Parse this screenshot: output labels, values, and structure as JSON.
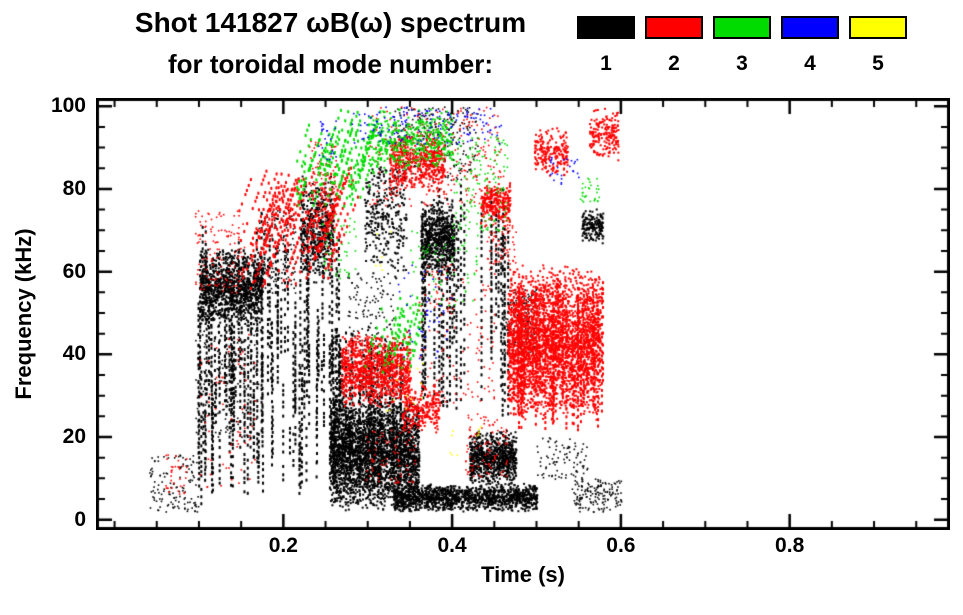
{
  "header": {
    "title_line1": "Shot 141827 ωB(ω) spectrum",
    "title_line2": "for toroidal mode number:"
  },
  "legend": {
    "items": [
      {
        "label": "1",
        "color": "#000000"
      },
      {
        "label": "2",
        "color": "#ff0000"
      },
      {
        "label": "3",
        "color": "#00dc00"
      },
      {
        "label": "4",
        "color": "#0000ff"
      },
      {
        "label": "5",
        "color": "#ffff00"
      }
    ]
  },
  "chart_data": {
    "type": "scatter",
    "title": "Shot 141827 ωB(ω) spectrum for toroidal mode number 1-5",
    "xlabel": "Time (s)",
    "ylabel": "Frequency (kHz)",
    "xlim": [
      0.0,
      1.0
    ],
    "ylim": [
      0,
      100
    ],
    "grid": false,
    "legend_position": "top-right",
    "x_ticks": {
      "major": [
        0.2,
        0.4,
        0.6,
        0.8
      ],
      "labels": [
        "0.2",
        "0.4",
        "0.6",
        "0.8"
      ],
      "minor_step": 0.05
    },
    "y_ticks": {
      "major": [
        0,
        20,
        40,
        60,
        80,
        100
      ],
      "labels": [
        "0",
        "20",
        "40",
        "60",
        "80",
        "100"
      ],
      "minor_step": 5
    },
    "series": [
      {
        "name": "n=1",
        "mode": 1,
        "color": "#000000",
        "clusters": [
          {
            "kind": "vstreaks",
            "t": [
              0.095,
              0.175
            ],
            "f": [
              4,
              72
            ],
            "n": 55,
            "seg": [
              6,
              40
            ]
          },
          {
            "kind": "blob",
            "t": [
              0.1,
              0.175
            ],
            "f": [
              46,
              66
            ],
            "n": 1100
          },
          {
            "kind": "vstreaks",
            "t": [
              0.17,
              0.27
            ],
            "f": [
              4,
              78
            ],
            "n": 60,
            "seg": [
              6,
              35
            ]
          },
          {
            "kind": "blob",
            "t": [
              0.22,
              0.258
            ],
            "f": [
              56,
              84
            ],
            "n": 500
          },
          {
            "kind": "blob",
            "t": [
              0.255,
              0.36
            ],
            "f": [
              2,
              30
            ],
            "n": 2600
          },
          {
            "kind": "vstreaks",
            "t": [
              0.255,
              0.345
            ],
            "f": [
              4,
              48
            ],
            "n": 45,
            "seg": [
              8,
              30
            ]
          },
          {
            "kind": "blob",
            "t": [
              0.33,
              0.5
            ],
            "f": [
              2,
              9
            ],
            "n": 1300
          },
          {
            "kind": "blob",
            "t": [
              0.42,
              0.475
            ],
            "f": [
              8,
              22
            ],
            "n": 800
          },
          {
            "kind": "vstreaks",
            "t": [
              0.355,
              0.47
            ],
            "f": [
              25,
              82
            ],
            "n": 28,
            "seg": [
              15,
              55
            ]
          },
          {
            "kind": "blob",
            "t": [
              0.362,
              0.402
            ],
            "f": [
              58,
              78
            ],
            "n": 600
          },
          {
            "kind": "blob",
            "t": [
              0.295,
              0.345
            ],
            "f": [
              58,
              88
            ],
            "n": 300
          },
          {
            "kind": "specks",
            "t": [
              0.33,
              0.43
            ],
            "f": [
              82,
              100
            ],
            "n": 280
          },
          {
            "kind": "specks",
            "t": [
              0.04,
              0.1
            ],
            "f": [
              2,
              16
            ],
            "n": 130
          },
          {
            "kind": "specks",
            "t": [
              0.54,
              0.6
            ],
            "f": [
              2,
              10
            ],
            "n": 160
          },
          {
            "kind": "blob",
            "t": [
              0.553,
              0.578
            ],
            "f": [
              67,
              76
            ],
            "n": 160
          },
          {
            "kind": "specks",
            "t": [
              0.46,
              0.5
            ],
            "f": [
              40,
              56
            ],
            "n": 200
          },
          {
            "kind": "specks",
            "t": [
              0.5,
              0.56
            ],
            "f": [
              10,
              20
            ],
            "n": 90
          },
          {
            "kind": "specks",
            "t": [
              0.17,
              0.215
            ],
            "f": [
              55,
              75
            ],
            "n": 150
          },
          {
            "kind": "specks",
            "t": [
              0.095,
              0.17
            ],
            "f": [
              20,
              46
            ],
            "n": 150
          },
          {
            "kind": "specks",
            "t": [
              0.275,
              0.33
            ],
            "f": [
              30,
              60
            ],
            "n": 180
          }
        ]
      },
      {
        "name": "n=2",
        "mode": 2,
        "color": "#ff0000",
        "clusters": [
          {
            "kind": "dstreaks",
            "t": [
              0.145,
              0.255
            ],
            "f": [
              56,
              86
            ],
            "n": 60,
            "seg": [
              6,
              20
            ],
            "slope": 0.0018
          },
          {
            "kind": "blob",
            "t": [
              0.268,
              0.35
            ],
            "f": [
              27,
              46
            ],
            "n": 1000
          },
          {
            "kind": "blob",
            "t": [
              0.34,
              0.385
            ],
            "f": [
              21,
              33
            ],
            "n": 250
          },
          {
            "kind": "blob",
            "t": [
              0.465,
              0.575
            ],
            "f": [
              24,
              62
            ],
            "n": 2800
          },
          {
            "kind": "vstreaks",
            "t": [
              0.468,
              0.578
            ],
            "f": [
              22,
              60
            ],
            "n": 45,
            "seg": [
              10,
              34
            ]
          },
          {
            "kind": "blob",
            "t": [
              0.325,
              0.39
            ],
            "f": [
              79,
              95
            ],
            "n": 500
          },
          {
            "kind": "specks",
            "t": [
              0.3,
              0.46
            ],
            "f": [
              76,
              100
            ],
            "n": 260
          },
          {
            "kind": "blob",
            "t": [
              0.497,
              0.536
            ],
            "f": [
              83,
              95
            ],
            "n": 200
          },
          {
            "kind": "blob",
            "t": [
              0.562,
              0.596
            ],
            "f": [
              87,
              100
            ],
            "n": 180
          },
          {
            "kind": "blob",
            "t": [
              0.433,
              0.468
            ],
            "f": [
              71,
              82
            ],
            "n": 260
          },
          {
            "kind": "specks",
            "t": [
              0.095,
              0.155
            ],
            "f": [
              55,
              75
            ],
            "n": 130
          },
          {
            "kind": "specks",
            "t": [
              0.1,
              0.17
            ],
            "f": [
              8,
              45
            ],
            "n": 70
          },
          {
            "kind": "specks",
            "t": [
              0.06,
              0.085
            ],
            "f": [
              6,
              16
            ],
            "n": 35
          },
          {
            "kind": "specks",
            "t": [
              0.23,
              0.262
            ],
            "f": [
              70,
              92
            ],
            "n": 100
          },
          {
            "kind": "specks",
            "t": [
              0.36,
              0.45
            ],
            "f": [
              28,
              62
            ],
            "n": 130
          },
          {
            "kind": "specks",
            "t": [
              0.415,
              0.465
            ],
            "f": [
              10,
              26
            ],
            "n": 90
          },
          {
            "kind": "specks",
            "t": [
              0.295,
              0.36
            ],
            "f": [
              9,
              22
            ],
            "n": 70
          },
          {
            "kind": "specks",
            "t": [
              0.44,
              0.475
            ],
            "f": [
              62,
              72
            ],
            "n": 60
          }
        ]
      },
      {
        "name": "n=3",
        "mode": 3,
        "color": "#00dc00",
        "clusters": [
          {
            "kind": "dstreaks",
            "t": [
              0.212,
              0.302
            ],
            "f": [
              76,
              100
            ],
            "n": 40,
            "seg": [
              6,
              18
            ],
            "slope": 0.0016
          },
          {
            "kind": "blob",
            "t": [
              0.3,
              0.4
            ],
            "f": [
              84,
              100
            ],
            "n": 420
          },
          {
            "kind": "dstreaks",
            "t": [
              0.292,
              0.35
            ],
            "f": [
              36,
              55
            ],
            "n": 16,
            "seg": [
              5,
              14
            ],
            "slope": 0.0012
          },
          {
            "kind": "specks",
            "t": [
              0.4,
              0.465
            ],
            "f": [
              70,
              93
            ],
            "n": 150
          },
          {
            "kind": "specks",
            "t": [
              0.35,
              0.43
            ],
            "f": [
              52,
              70
            ],
            "n": 70
          },
          {
            "kind": "specks",
            "t": [
              0.245,
              0.285
            ],
            "f": [
              58,
              74
            ],
            "n": 50
          },
          {
            "kind": "specks",
            "t": [
              0.55,
              0.575
            ],
            "f": [
              77,
              83
            ],
            "n": 30
          }
        ]
      },
      {
        "name": "n=4",
        "mode": 4,
        "color": "#0000ff",
        "clusters": [
          {
            "kind": "specks",
            "t": [
              0.28,
              0.46
            ],
            "f": [
              91,
              100
            ],
            "n": 150
          },
          {
            "kind": "specks",
            "t": [
              0.335,
              0.4
            ],
            "f": [
              38,
              62
            ],
            "n": 45
          },
          {
            "kind": "specks",
            "t": [
              0.515,
              0.55
            ],
            "f": [
              81,
              88
            ],
            "n": 25
          },
          {
            "kind": "specks",
            "t": [
              0.24,
              0.262
            ],
            "f": [
              87,
              97
            ],
            "n": 25
          }
        ]
      },
      {
        "name": "n=5",
        "mode": 5,
        "color": "#ffff00",
        "clusters": [
          {
            "kind": "specks",
            "t": [
              0.318,
              0.365
            ],
            "f": [
              26,
              38
            ],
            "n": 14
          },
          {
            "kind": "specks",
            "t": [
              0.395,
              0.435
            ],
            "f": [
              14,
              23
            ],
            "n": 10
          },
          {
            "kind": "specks",
            "t": [
              0.3,
              0.34
            ],
            "f": [
              60,
              70
            ],
            "n": 6
          }
        ]
      }
    ]
  }
}
